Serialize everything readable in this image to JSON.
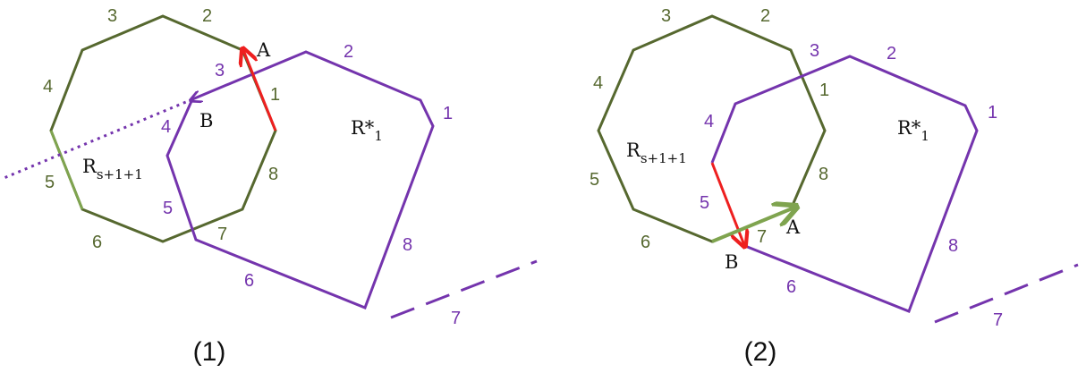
{
  "colors": {
    "green": "#56682f",
    "purple": "#7434ad",
    "red": "#ee1f1f",
    "lightgreen": "#7fa44f",
    "text": "#111111"
  },
  "panel1": {
    "caption": "(1)",
    "green_edges": [
      "1",
      "2",
      "3",
      "4",
      "5",
      "6",
      "7",
      "8"
    ],
    "purple_edges": [
      "1",
      "2",
      "3",
      "4",
      "5",
      "6",
      "7",
      "8"
    ],
    "point_a": "A",
    "point_b": "B",
    "r_s_main": "R",
    "r_s_sub": "s+1+1",
    "r_star_main": "R*",
    "r_star_sub": "1"
  },
  "panel2": {
    "caption": "(2)",
    "green_edges": [
      "1",
      "2",
      "3",
      "4",
      "5",
      "6",
      "7",
      "8"
    ],
    "purple_edges": [
      "1",
      "2",
      "3",
      "4",
      "5",
      "6",
      "7",
      "8"
    ],
    "point_a": "A",
    "point_b": "B",
    "r_s_main": "R",
    "r_s_sub": "s+1+1",
    "r_star_main": "R*",
    "r_star_sub": "1"
  }
}
